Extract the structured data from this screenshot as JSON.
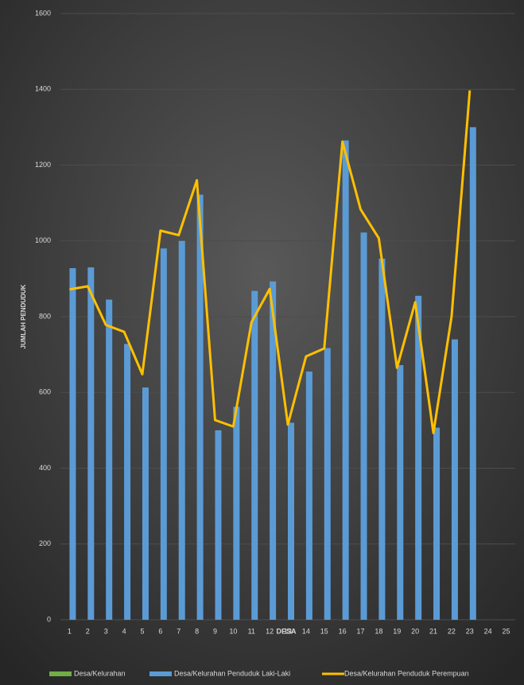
{
  "chart_data": {
    "type": "bar_line",
    "x_label": "DESA",
    "y_label": "JUMLAH PENDUDUK",
    "categories": [
      1,
      2,
      3,
      4,
      5,
      6,
      7,
      8,
      9,
      10,
      11,
      12,
      13,
      14,
      15,
      16,
      17,
      18,
      19,
      20,
      21,
      22,
      23,
      24,
      25
    ],
    "series": [
      {
        "name": "Desa/Kelurahan",
        "color": "#70ad47",
        "kind": "bar",
        "values": [
          null,
          null,
          null,
          null,
          null,
          null,
          null,
          null,
          null,
          null,
          null,
          null,
          null,
          null,
          null,
          null,
          null,
          null,
          null,
          null,
          null,
          null,
          null,
          null,
          null
        ]
      },
      {
        "name": "Desa/Kelurahan Penduduk Laki-Laki",
        "color": "#5b9bd5",
        "kind": "bar",
        "values": [
          928,
          930,
          845,
          728,
          613,
          980,
          1000,
          1122,
          500,
          562,
          868,
          893,
          520,
          655,
          717,
          1265,
          1022,
          953,
          672,
          855,
          507,
          740,
          1300,
          null,
          null
        ]
      },
      {
        "name": "Desa/Kelurahan Penduduk Perempuan",
        "color": "#ffc000",
        "kind": "line",
        "values": [
          872,
          880,
          778,
          760,
          648,
          1027,
          1015,
          1160,
          527,
          510,
          785,
          873,
          515,
          695,
          716,
          1262,
          1083,
          1007,
          665,
          838,
          493,
          800,
          1397,
          null,
          null
        ]
      }
    ],
    "ylim": [
      0,
      1600
    ],
    "yticks": [
      0,
      200,
      400,
      600,
      800,
      1000,
      1200,
      1400,
      1600
    ],
    "grid": true,
    "legend": "bottom"
  }
}
